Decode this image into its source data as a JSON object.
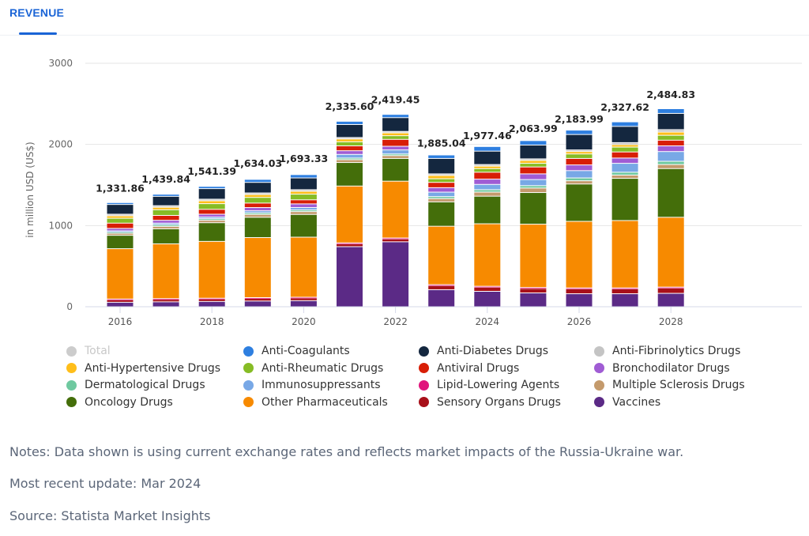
{
  "tabs": [
    {
      "label": "REVENUE",
      "active": true
    }
  ],
  "colors": {
    "accent": "#1a64d6"
  },
  "chart_data": {
    "type": "bar",
    "stacked": true,
    "title": "",
    "xlabel": "",
    "ylabel": "in million USD (US$)",
    "ylim": [
      0,
      3000
    ],
    "yticks": [
      0,
      1000,
      2000,
      3000
    ],
    "ytick_labels": [
      "0",
      "1000",
      "2000",
      "3000"
    ],
    "grid": true,
    "legend_position": "bottom",
    "categories": [
      "2016",
      "2017",
      "2018",
      "2019",
      "2020",
      "2021",
      "2022",
      "2023",
      "2024",
      "2025",
      "2026",
      "2027",
      "2028"
    ],
    "xtick_labels": [
      "2016",
      "",
      "2018",
      "",
      "2020",
      "",
      "2022",
      "",
      "2024",
      "",
      "2026",
      "",
      "2028"
    ],
    "totals": [
      1331.86,
      1439.84,
      1541.39,
      1634.03,
      1693.33,
      2335.6,
      2419.45,
      1885.04,
      1977.46,
      2063.99,
      2183.99,
      2327.62,
      2484.83
    ],
    "total_labels": [
      "1,331.86",
      "1,439.84",
      "1,541.39",
      "1,634.03",
      "1,693.33",
      "2,335.60",
      "2,419.45",
      "1,885.04",
      "1,977.46",
      "2,063.99",
      "2,183.99",
      "2,327.62",
      "2,484.83"
    ],
    "series": [
      {
        "name": "Vaccines",
        "color": "#5b2a86",
        "values": [
          55,
          60,
          65,
          70,
          75,
          740,
          800,
          210,
          190,
          170,
          160,
          160,
          165
        ]
      },
      {
        "name": "Sensory Organs Drugs",
        "color": "#a8101a",
        "values": [
          30,
          30,
          30,
          32,
          32,
          35,
          35,
          50,
          50,
          55,
          60,
          60,
          65
        ]
      },
      {
        "name": "Lipid-Lowering Agents",
        "color": "#e0147c",
        "values": [
          10,
          10,
          10,
          10,
          10,
          12,
          12,
          12,
          12,
          12,
          12,
          12,
          12
        ]
      },
      {
        "name": "Other Pharmaceuticals",
        "color": "#f78a00",
        "values": [
          620,
          675,
          700,
          740,
          740,
          700,
          700,
          720,
          770,
          780,
          820,
          830,
          860
        ]
      },
      {
        "name": "Oncology Drugs",
        "color": "#446e0a",
        "values": [
          165,
          185,
          230,
          250,
          280,
          290,
          280,
          300,
          340,
          390,
          460,
          520,
          600
        ]
      },
      {
        "name": "Multiple Sclerosis Drugs",
        "color": "#c49a6c",
        "values": [
          25,
          30,
          30,
          35,
          35,
          35,
          35,
          40,
          50,
          55,
          40,
          40,
          50
        ]
      },
      {
        "name": "Dermatological Drugs",
        "color": "#6fc9a0",
        "values": [
          15,
          20,
          20,
          20,
          20,
          20,
          20,
          25,
          30,
          30,
          35,
          35,
          40
        ]
      },
      {
        "name": "Immunosuppressants",
        "color": "#78a8e6",
        "values": [
          15,
          20,
          20,
          25,
          30,
          45,
          50,
          55,
          65,
          75,
          90,
          110,
          120
        ]
      },
      {
        "name": "Bronchodilator Drugs",
        "color": "#a05cd4",
        "values": [
          30,
          35,
          35,
          40,
          45,
          45,
          45,
          55,
          65,
          70,
          70,
          65,
          70
        ]
      },
      {
        "name": "Antiviral Drugs",
        "color": "#d81e06",
        "values": [
          65,
          60,
          60,
          55,
          50,
          60,
          85,
          65,
          85,
          85,
          80,
          75,
          70
        ]
      },
      {
        "name": "Anti-Rheumatic Drugs",
        "color": "#86bc25",
        "values": [
          60,
          70,
          70,
          70,
          70,
          50,
          45,
          45,
          45,
          45,
          55,
          60,
          60
        ]
      },
      {
        "name": "Anti-Hypertensive Drugs",
        "color": "#ffbe1a",
        "values": [
          30,
          30,
          35,
          35,
          35,
          35,
          35,
          40,
          30,
          35,
          30,
          30,
          40
        ]
      },
      {
        "name": "Anti-Fibrinolytics Drugs",
        "color": "#c4c4c4",
        "values": [
          20,
          20,
          20,
          20,
          20,
          18,
          18,
          20,
          20,
          20,
          20,
          25,
          30
        ]
      },
      {
        "name": "Anti-Diabetes Drugs",
        "color": "#14273f",
        "values": [
          120,
          115,
          130,
          130,
          145,
          160,
          170,
          190,
          165,
          170,
          190,
          200,
          200
        ]
      },
      {
        "name": "Anti-Coagulants",
        "color": "#2e7fe0",
        "values": [
          23,
          26,
          28,
          37,
          41,
          40,
          40,
          43,
          57,
          55,
          54,
          56,
          58
        ]
      }
    ],
    "legend": [
      {
        "name": "Total",
        "color": "#cccccc",
        "disabled": true
      },
      {
        "name": "Anti-Coagulants",
        "color": "#2e7fe0"
      },
      {
        "name": "Anti-Diabetes Drugs",
        "color": "#14273f"
      },
      {
        "name": "Anti-Fibrinolytics Drugs",
        "color": "#c4c4c4"
      },
      {
        "name": "Anti-Hypertensive Drugs",
        "color": "#ffbe1a"
      },
      {
        "name": "Anti-Rheumatic Drugs",
        "color": "#86bc25"
      },
      {
        "name": "Antiviral Drugs",
        "color": "#d81e06"
      },
      {
        "name": "Bronchodilator Drugs",
        "color": "#a05cd4"
      },
      {
        "name": "Dermatological Drugs",
        "color": "#6fc9a0"
      },
      {
        "name": "Immunosuppressants",
        "color": "#78a8e6"
      },
      {
        "name": "Lipid-Lowering Agents",
        "color": "#e0147c"
      },
      {
        "name": "Multiple Sclerosis Drugs",
        "color": "#c49a6c"
      },
      {
        "name": "Oncology Drugs",
        "color": "#446e0a"
      },
      {
        "name": "Other Pharmaceuticals",
        "color": "#f78a00"
      },
      {
        "name": "Sensory Organs Drugs",
        "color": "#a8101a"
      },
      {
        "name": "Vaccines",
        "color": "#5b2a86"
      }
    ]
  },
  "notes": {
    "note": "Notes: Data shown is using current exchange rates and reflects market impacts of the Russia-Ukraine war.",
    "update": "Most recent update: Mar 2024",
    "source": "Source: Statista Market Insights"
  }
}
